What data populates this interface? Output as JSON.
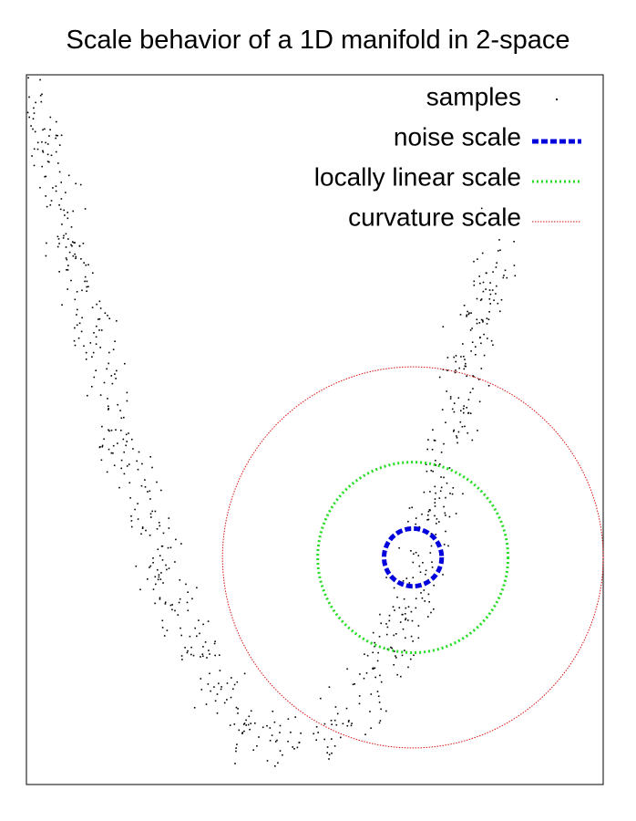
{
  "chart_data": {
    "type": "scatter",
    "title": "Scale behavior of a 1D manifold in 2-space",
    "xlabel": "",
    "ylabel": "",
    "grid": false,
    "legend_position": "top-right",
    "xlim": [
      0,
      100
    ],
    "ylim": [
      0,
      100
    ],
    "series": [
      {
        "name": "samples",
        "marker": "dot",
        "color": "#000000",
        "description_free": true,
        "curve_model": {
          "left_branch": [
            [
              0,
              99
            ],
            [
              6,
              80
            ],
            [
              12,
              62
            ],
            [
              18,
              45
            ],
            [
              24,
              30
            ],
            [
              31,
              16
            ],
            [
              38,
              8
            ],
            [
              46,
              5
            ]
          ],
          "right_branch": [
            [
              46,
              5
            ],
            [
              54,
              8
            ],
            [
              61,
              16
            ],
            [
              66,
              26
            ],
            [
              69,
              34
            ],
            [
              72,
              43
            ],
            [
              75,
              54
            ],
            [
              78,
              63
            ],
            [
              80,
              71
            ],
            [
              82,
              76
            ]
          ],
          "noise": 2.6,
          "count": 760
        }
      },
      {
        "name": "noise scale",
        "shape": "circle",
        "center": [
          67,
          32
        ],
        "radius": 5,
        "color": "#0000dd",
        "style": "dashed"
      },
      {
        "name": "locally linear scale",
        "shape": "circle",
        "center": [
          67,
          32
        ],
        "radius": 16.5,
        "color": "#22dd22",
        "style": "dotted"
      },
      {
        "name": "curvature scale",
        "shape": "circle",
        "center": [
          67,
          32
        ],
        "radius": 33,
        "color": "#dd1111",
        "style": "dotted"
      }
    ]
  }
}
